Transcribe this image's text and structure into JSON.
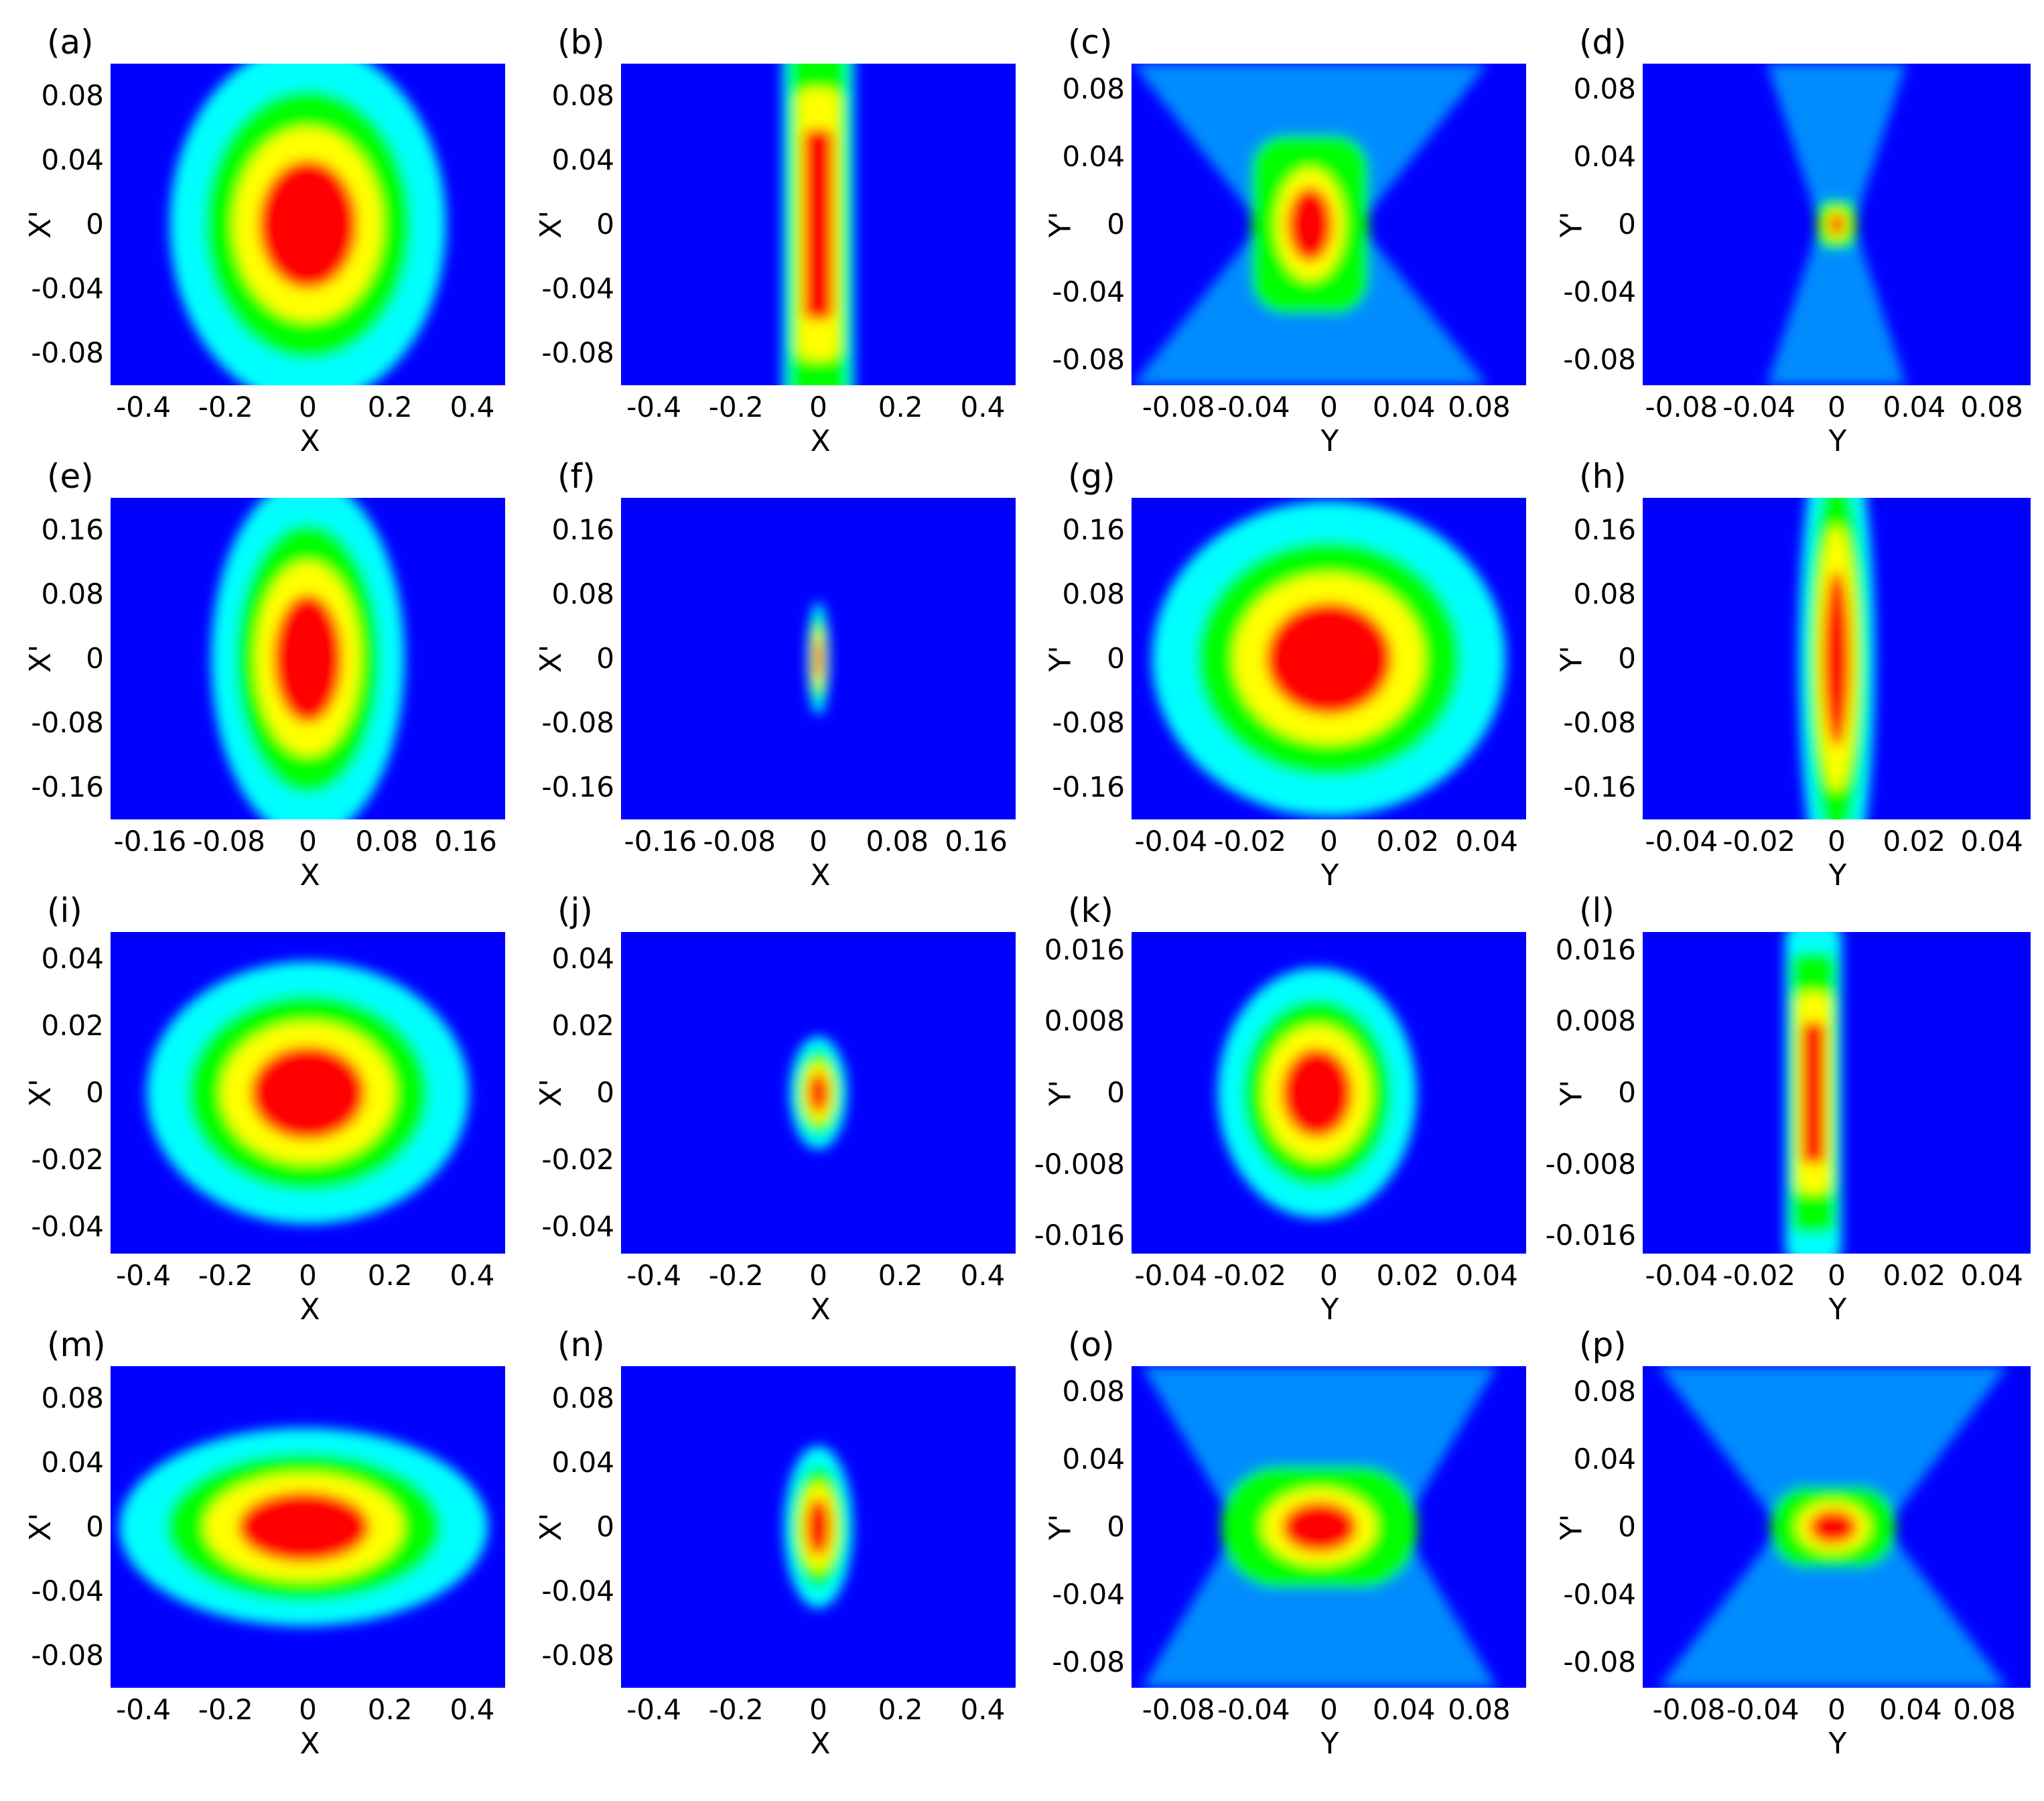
{
  "chart_data": [
    {
      "type": "heatmap",
      "panel": "(a)",
      "xlabel": "X",
      "ylabel": "X'",
      "xticks": [
        "-0.4",
        "-0.2",
        "0",
        "0.2",
        "0.4"
      ],
      "yticks": [
        "0.08",
        "0.04",
        "0",
        "-0.04",
        "-0.08"
      ],
      "xlim": [
        -0.48,
        0.48
      ],
      "ylim": [
        -0.1,
        0.1
      ],
      "field": {
        "shape": "ellipse",
        "cx": 0.0,
        "cy": 0.0,
        "sx": 0.12,
        "sy": 0.04,
        "contours": [
          1.0,
          1.7,
          2.5
        ]
      }
    },
    {
      "type": "heatmap",
      "panel": "(b)",
      "xlabel": "X",
      "ylabel": "X'",
      "xticks": [
        "-0.4",
        "-0.2",
        "0",
        "0.2",
        "0.4"
      ],
      "yticks": [
        "0.08",
        "0.04",
        "0",
        "-0.04",
        "-0.08"
      ],
      "xlim": [
        -0.48,
        0.48
      ],
      "ylim": [
        -0.1,
        0.1
      ],
      "field": {
        "shape": "rect",
        "cx": 0.0,
        "cy": 0.0,
        "sx": 0.06,
        "sy": 0.045,
        "contours": [
          1.0,
          1.2
        ]
      }
    },
    {
      "type": "heatmap",
      "panel": "(c)",
      "xlabel": "Y",
      "ylabel": "Y'",
      "xticks": [
        "-0.08",
        "-0.04",
        "0",
        "0.04",
        "0.08"
      ],
      "yticks": [
        "0.08",
        "0.04",
        "0",
        "-0.04",
        "-0.08"
      ],
      "xlim": [
        -0.105,
        0.105
      ],
      "ylim": [
        -0.095,
        0.095
      ],
      "field": {
        "shape": "hourglass",
        "cx": -0.01,
        "cy": 0.0,
        "sx": 0.012,
        "sy": 0.022,
        "contours": [
          1.0,
          2.5,
          4.0
        ]
      }
    },
    {
      "type": "heatmap",
      "panel": "(d)",
      "xlabel": "Y",
      "ylabel": "Y'",
      "xticks": [
        "-0.08",
        "-0.04",
        "0",
        "0.04",
        "0.08"
      ],
      "yticks": [
        "0.08",
        "0.04",
        "0",
        "-0.04",
        "-0.08"
      ],
      "xlim": [
        -0.1,
        0.1
      ],
      "ylim": [
        -0.095,
        0.095
      ],
      "field": {
        "shape": "hourglass",
        "cx": 0.0,
        "cy": 0.0,
        "sx": 0.004,
        "sy": 0.006,
        "contours": [
          1.0,
          2.0,
          3.0
        ]
      }
    },
    {
      "type": "heatmap",
      "panel": "(e)",
      "xlabel": "X",
      "ylabel": "X'",
      "xticks": [
        "-0.16",
        "-0.08",
        "0",
        "0.08",
        "0.16"
      ],
      "yticks": [
        "0.16",
        "0.08",
        "0",
        "-0.08",
        "-0.16"
      ],
      "xlim": [
        -0.2,
        0.2
      ],
      "ylim": [
        -0.2,
        0.2
      ],
      "field": {
        "shape": "ellipse",
        "cx": 0.0,
        "cy": 0.0,
        "sx": 0.035,
        "sy": 0.08,
        "contours": [
          1.0,
          1.7,
          2.5
        ]
      }
    },
    {
      "type": "heatmap",
      "panel": "(f)",
      "xlabel": "X",
      "ylabel": "X'",
      "xticks": [
        "-0.16",
        "-0.08",
        "0",
        "0.08",
        "0.16"
      ],
      "yticks": [
        "0.16",
        "0.08",
        "0",
        "-0.08",
        "-0.16"
      ],
      "xlim": [
        -0.2,
        0.2
      ],
      "ylim": [
        -0.2,
        0.2
      ],
      "field": {
        "shape": "ellipse",
        "cx": 0.0,
        "cy": 0.0,
        "sx": 0.004,
        "sy": 0.025,
        "contours": [
          1.0,
          1.6,
          2.4
        ]
      }
    },
    {
      "type": "heatmap",
      "panel": "(g)",
      "xlabel": "Y",
      "ylabel": "Y'",
      "xticks": [
        "-0.04",
        "-0.02",
        "0",
        "0.02",
        "0.04"
      ],
      "yticks": [
        "0.16",
        "0.08",
        "0",
        "-0.08",
        "-0.16"
      ],
      "xlim": [
        -0.05,
        0.05
      ],
      "ylim": [
        -0.2,
        0.2
      ],
      "field": {
        "shape": "ellipse",
        "cx": 0.0,
        "cy": 0.0,
        "sx": 0.016,
        "sy": 0.07,
        "contours": [
          1.0,
          1.7,
          2.5
        ]
      }
    },
    {
      "type": "heatmap",
      "panel": "(h)",
      "xlabel": "Y",
      "ylabel": "Y'",
      "xticks": [
        "-0.04",
        "-0.02",
        "0",
        "0.02",
        "0.04"
      ],
      "yticks": [
        "0.16",
        "0.08",
        "0",
        "-0.08",
        "-0.16"
      ],
      "xlim": [
        -0.05,
        0.05
      ],
      "ylim": [
        -0.2,
        0.2
      ],
      "field": {
        "shape": "ellipse",
        "cx": 0.0,
        "cy": 0.0,
        "sx": 0.0035,
        "sy": 0.11,
        "contours": [
          1.0,
          1.6,
          2.4
        ]
      }
    },
    {
      "type": "heatmap",
      "panel": "(i)",
      "xlabel": "X",
      "ylabel": "X'",
      "xticks": [
        "-0.4",
        "-0.2",
        "0",
        "0.2",
        "0.4"
      ],
      "yticks": [
        "0.04",
        "0.02",
        "0",
        "-0.02",
        "-0.04"
      ],
      "xlim": [
        -0.48,
        0.48
      ],
      "ylim": [
        -0.048,
        0.048
      ],
      "field": {
        "shape": "ellipse",
        "cx": 0.0,
        "cy": 0.0,
        "sx": 0.14,
        "sy": 0.014,
        "contours": [
          1.0,
          1.7,
          2.5
        ]
      }
    },
    {
      "type": "heatmap",
      "panel": "(j)",
      "xlabel": "X",
      "ylabel": "X'",
      "xticks": [
        "-0.4",
        "-0.2",
        "0",
        "0.2",
        "0.4"
      ],
      "yticks": [
        "0.04",
        "0.02",
        "0",
        "-0.02",
        "-0.04"
      ],
      "xlim": [
        -0.48,
        0.48
      ],
      "ylim": [
        -0.048,
        0.048
      ],
      "field": {
        "shape": "ellipse",
        "cx": 0.0,
        "cy": 0.0,
        "sx": 0.025,
        "sy": 0.006,
        "contours": [
          1.0,
          1.6,
          2.4
        ]
      }
    },
    {
      "type": "heatmap",
      "panel": "(k)",
      "xlabel": "Y",
      "ylabel": "Y'",
      "xticks": [
        "-0.04",
        "-0.02",
        "0",
        "0.02",
        "0.04"
      ],
      "yticks": [
        "0.016",
        "0.008",
        "0",
        "-0.008",
        "-0.016"
      ],
      "xlim": [
        -0.05,
        0.05
      ],
      "ylim": [
        -0.018,
        0.018
      ],
      "field": {
        "shape": "ellipse",
        "cx": -0.003,
        "cy": 0.0,
        "sx": 0.009,
        "sy": 0.005,
        "contours": [
          1.0,
          1.7,
          2.5
        ]
      }
    },
    {
      "type": "heatmap",
      "panel": "(l)",
      "xlabel": "Y",
      "ylabel": "Y'",
      "xticks": [
        "-0.04",
        "-0.02",
        "0",
        "0.02",
        "0.04"
      ],
      "yticks": [
        "0.016",
        "0.008",
        "0",
        "-0.008",
        "-0.016"
      ],
      "xlim": [
        -0.05,
        0.05
      ],
      "ylim": [
        -0.018,
        0.018
      ],
      "field": {
        "shape": "rect",
        "cx": -0.006,
        "cy": 0.0,
        "sx": 0.005,
        "sy": 0.006,
        "contours": [
          1.0,
          1.8
        ]
      }
    },
    {
      "type": "heatmap",
      "panel": "(m)",
      "xlabel": "X",
      "ylabel": "X'",
      "xticks": [
        "-0.4",
        "-0.2",
        "0",
        "0.2",
        "0.4"
      ],
      "yticks": [
        "0.08",
        "0.04",
        "0",
        "-0.04",
        "-0.08"
      ],
      "xlim": [
        -0.48,
        0.48
      ],
      "ylim": [
        -0.1,
        0.1
      ],
      "field": {
        "shape": "ellipse",
        "cx": -0.01,
        "cy": 0.0,
        "sx": 0.16,
        "sy": 0.022,
        "contours": [
          1.0,
          1.7,
          2.5
        ]
      }
    },
    {
      "type": "heatmap",
      "panel": "(n)",
      "xlabel": "X",
      "ylabel": "X'",
      "xticks": [
        "-0.4",
        "-0.2",
        "0",
        "0.2",
        "0.4"
      ],
      "yticks": [
        "0.08",
        "0.04",
        "0",
        "-0.04",
        "-0.08"
      ],
      "xlim": [
        -0.48,
        0.48
      ],
      "ylim": [
        -0.1,
        0.1
      ],
      "field": {
        "shape": "ellipse",
        "cx": 0.0,
        "cy": 0.0,
        "sx": 0.03,
        "sy": 0.018,
        "contours": [
          1.0,
          1.6,
          2.4
        ]
      }
    },
    {
      "type": "heatmap",
      "panel": "(o)",
      "xlabel": "Y",
      "ylabel": "Y'",
      "xticks": [
        "-0.08",
        "-0.04",
        "0",
        "0.04",
        "0.08"
      ],
      "yticks": [
        "0.08",
        "0.04",
        "0",
        "-0.04",
        "-0.08"
      ],
      "xlim": [
        -0.105,
        0.105
      ],
      "ylim": [
        -0.095,
        0.095
      ],
      "field": {
        "shape": "hourglass",
        "cx": -0.005,
        "cy": 0.0,
        "sx": 0.02,
        "sy": 0.015,
        "contours": [
          1.0,
          2.5,
          4.0
        ]
      }
    },
    {
      "type": "heatmap",
      "panel": "(p)",
      "xlabel": "Y",
      "ylabel": "Y'",
      "xticks": [
        "-0.08",
        "-0.04",
        "0",
        "0.04",
        "0.08"
      ],
      "yticks": [
        "0.08",
        "0.04",
        "0",
        "-0.04",
        "-0.08"
      ],
      "xlim": [
        -0.105,
        0.105
      ],
      "ylim": [
        -0.095,
        0.095
      ],
      "field": {
        "shape": "hourglass",
        "cx": -0.002,
        "cy": 0.0,
        "sx": 0.013,
        "sy": 0.01,
        "contours": [
          1.0,
          2.5,
          4.0
        ]
      }
    }
  ],
  "colors": {
    "background": "#0000ff",
    "level1": "#00ffff",
    "level2": "#00ff00",
    "level3": "#ffff00",
    "level4": "#ff0000"
  }
}
